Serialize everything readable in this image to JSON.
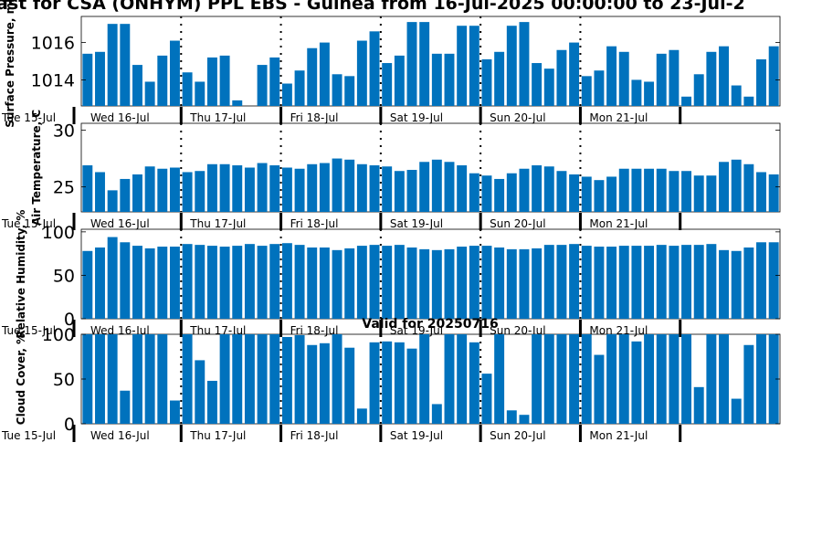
{
  "title": "ast for CSA (ONHYM) PPL EBS - Guinea from 16-Jul-2025 00:00:00 to 23-Jul-2",
  "panel_title": "Valid for 20250716",
  "days": [
    "Wed 16-Jul",
    "Thu 17-Jul",
    "Fri 18-Jul",
    "Sat 19-Jul",
    "Sun 20-Jul",
    "Mon 21-Jul"
  ],
  "start_label": "Tue 15-Jul",
  "colors": {
    "bar": "#0072bd",
    "axis": "#000000",
    "separator": "#000000"
  },
  "chart_data": [
    {
      "type": "bar",
      "ylabel": "Surface Pressure, mb",
      "yticks": [
        1014,
        1016
      ],
      "ylim": [
        1012.6,
        1017.4
      ],
      "values": [
        1015.4,
        1015.5,
        1017.0,
        1017.0,
        1014.8,
        1013.9,
        1015.3,
        1016.1,
        1014.4,
        1013.9,
        1015.2,
        1015.3,
        1012.9,
        1012.5,
        1014.8,
        1015.2,
        1013.8,
        1014.5,
        1015.7,
        1016.0,
        1014.3,
        1014.2,
        1016.1,
        1016.6,
        1014.9,
        1015.3,
        1017.1,
        1017.1,
        1015.4,
        1015.4,
        1016.9,
        1016.9,
        1015.1,
        1015.5,
        1016.9,
        1017.1,
        1014.9,
        1014.6,
        1015.6,
        1016.0,
        1014.2,
        1014.5,
        1015.8,
        1015.5,
        1014.0,
        1013.9,
        1015.4,
        1015.6,
        1013.1,
        1014.3,
        1015.5,
        1015.8,
        1013.7,
        1013.1,
        1015.1,
        1015.8
      ]
    },
    {
      "type": "bar",
      "ylabel": "Air Temperature, C",
      "yticks": [
        25,
        30
      ],
      "ylim": [
        22.8,
        30.6
      ],
      "values": [
        26.9,
        26.3,
        24.7,
        25.7,
        26.1,
        26.8,
        26.6,
        26.7,
        26.3,
        26.4,
        27.0,
        27.0,
        26.9,
        26.7,
        27.1,
        26.9,
        26.7,
        26.6,
        27.0,
        27.1,
        27.5,
        27.4,
        27.0,
        26.9,
        26.8,
        26.4,
        26.5,
        27.2,
        27.4,
        27.2,
        26.9,
        26.2,
        26.0,
        25.7,
        26.2,
        26.6,
        26.9,
        26.8,
        26.4,
        26.1,
        25.9,
        25.6,
        25.9,
        26.6,
        26.6,
        26.6,
        26.6,
        26.4,
        26.4,
        26.0,
        26.0,
        27.2,
        27.4,
        27.0,
        26.3,
        26.1
      ]
    },
    {
      "type": "bar",
      "ylabel": "Relative Humidity, %",
      "yticks": [
        0,
        50,
        100
      ],
      "ylim": [
        0,
        103
      ],
      "values": [
        78,
        82,
        94,
        88,
        84,
        81,
        83,
        83,
        86,
        85,
        84,
        83,
        84,
        86,
        84,
        86,
        87,
        85,
        82,
        82,
        79,
        81,
        84,
        85,
        84,
        85,
        82,
        80,
        79,
        80,
        83,
        84,
        84,
        82,
        80,
        80,
        81,
        85,
        85,
        86,
        84,
        83,
        83,
        84,
        84,
        84,
        85,
        84,
        85,
        85,
        86,
        79,
        78,
        82,
        88,
        88
      ]
    },
    {
      "type": "bar",
      "ylabel": "Cloud Cover, %",
      "yticks": [
        0,
        50,
        100
      ],
      "ylim": [
        0,
        100
      ],
      "values": [
        100,
        100,
        100,
        37,
        100,
        100,
        100,
        26,
        100,
        71,
        48,
        100,
        100,
        100,
        100,
        100,
        97,
        99,
        88,
        90,
        100,
        85,
        17,
        91,
        92,
        91,
        84,
        100,
        22,
        100,
        100,
        91,
        56,
        100,
        15,
        10,
        100,
        100,
        100,
        100,
        100,
        77,
        100,
        100,
        92,
        100,
        100,
        100,
        100,
        41,
        100,
        100,
        28,
        88,
        100,
        100
      ]
    }
  ]
}
